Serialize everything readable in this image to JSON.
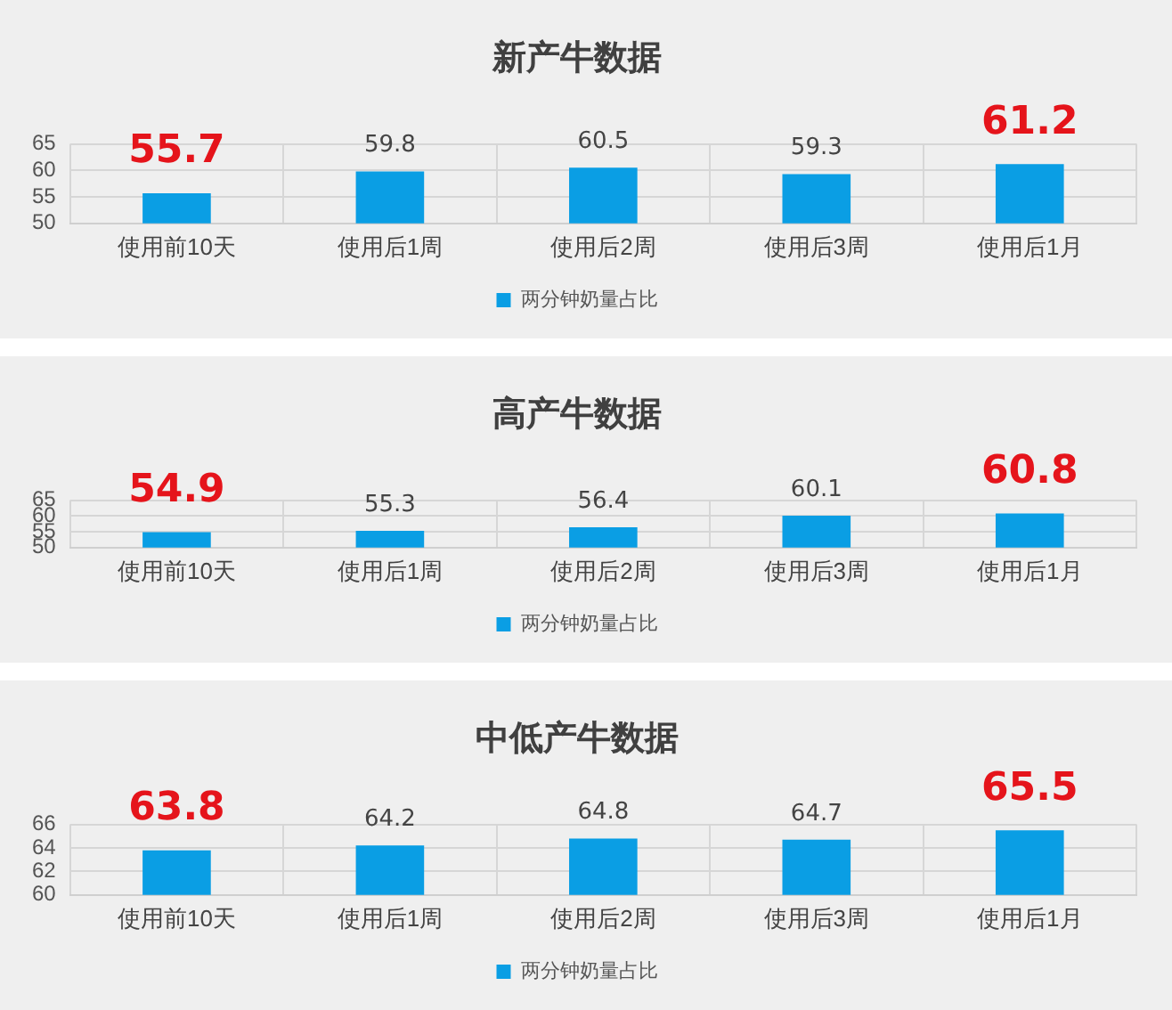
{
  "chart_data": [
    {
      "type": "bar",
      "title": "新产牛数据",
      "categories": [
        "使用前10天",
        "使用后1周",
        "使用后2周",
        "使用后3周",
        "使用后1月"
      ],
      "series": [
        {
          "name": "两分钟奶量占比",
          "color": "#0a9ee4",
          "values": [
            55.7,
            59.8,
            60.5,
            59.3,
            61.2
          ]
        }
      ],
      "ylim": [
        50,
        65
      ],
      "yticks": [
        50,
        55,
        60,
        65
      ],
      "grid": true,
      "legend": "bottom",
      "data_labels": true
    },
    {
      "type": "bar",
      "title": "高产牛数据",
      "categories": [
        "使用前10天",
        "使用后1周",
        "使用后2周",
        "使用后3周",
        "使用后1月"
      ],
      "series": [
        {
          "name": "两分钟奶量占比",
          "color": "#0a9ee4",
          "values": [
            54.9,
            55.3,
            56.4,
            60.1,
            60.8
          ]
        }
      ],
      "ylim": [
        50,
        65
      ],
      "yticks": [
        50,
        55,
        60,
        65
      ],
      "grid": true,
      "legend": "bottom",
      "data_labels": true
    },
    {
      "type": "bar",
      "title": "中低产牛数据",
      "categories": [
        "使用前10天",
        "使用后1周",
        "使用后2周",
        "使用后3周",
        "使用后1月"
      ],
      "series": [
        {
          "name": "两分钟奶量占比",
          "color": "#0a9ee4",
          "values": [
            63.8,
            64.2,
            64.8,
            64.7,
            65.5
          ]
        }
      ],
      "ylim": [
        60,
        66
      ],
      "yticks": [
        60,
        62,
        64,
        66
      ],
      "grid": true,
      "legend": "bottom",
      "data_labels": true
    }
  ]
}
